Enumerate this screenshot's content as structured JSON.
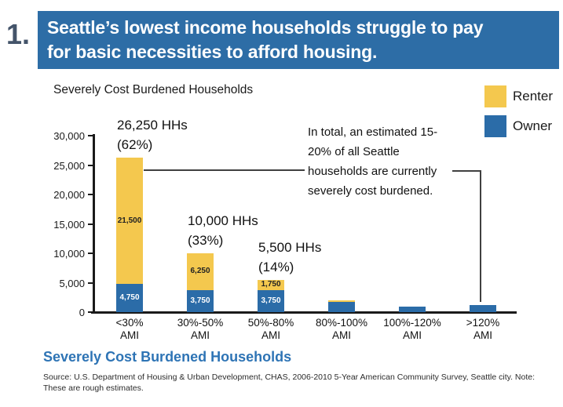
{
  "header": {
    "number": "1.",
    "number_color": "#44546A",
    "banner_color": "#2D6DA6",
    "title_lines": [
      "Seattle’s lowest income households struggle to pay",
      "for basic necessities to afford housing."
    ]
  },
  "chart_data": {
    "type": "bar",
    "stacked": true,
    "title": "Severely Cost Burdened Households",
    "categories": [
      "<30% AMI",
      "30%-50% AMI",
      "50%-80% AMI",
      "80%-100% AMI",
      "100%-120% AMI",
      ">120% AMI"
    ],
    "x_tick_line1": [
      "<30%",
      "30%-50%",
      "50%-80%",
      "80%-100%",
      "100%-120%",
      ">120%"
    ],
    "x_tick_line2": "AMI",
    "series": [
      {
        "name": "Renter",
        "color": "#F4C84E",
        "values": [
          21500,
          6250,
          1750,
          250,
          0,
          0
        ],
        "labels": [
          "21,500",
          "6,250",
          "1,750",
          "",
          "",
          ""
        ]
      },
      {
        "name": "Owner",
        "color": "#2B6CA8",
        "values": [
          4750,
          3750,
          3750,
          1750,
          1000,
          1250
        ],
        "labels": [
          "4,750",
          "3,750",
          "3,750",
          "",
          "",
          ""
        ]
      }
    ],
    "totals": [
      {
        "text": "26,250 HHs",
        "pct": "(62%)"
      },
      {
        "text": "10,000 HHs",
        "pct": "(33%)"
      },
      {
        "text": "5,500 HHs",
        "pct": "(14%)"
      },
      null,
      null,
      null
    ],
    "ylim": [
      0,
      30000
    ],
    "y_tick_values": [
      0,
      5000,
      10000,
      15000,
      20000,
      25000,
      30000
    ],
    "y_tick_labels": [
      "0",
      "5,000",
      "10,000",
      "15,000",
      "20,000",
      "25,000",
      "30,000"
    ],
    "grid": false,
    "legend_position": "top-right",
    "legend": [
      {
        "label": "Renter"
      },
      {
        "label": "Owner"
      }
    ],
    "annotation": "In total, an estimated 15-20% of all Seattle households are currently severely cost burdened."
  },
  "footer": {
    "heading": "Severely Cost Burdened Households",
    "heading_color": "#2E74B5",
    "source": "Source: U.S. Department of Housing & Urban Development, CHAS, 2006-2010 5-Year American Community Survey, Seattle city. Note: These are rough estimates."
  }
}
